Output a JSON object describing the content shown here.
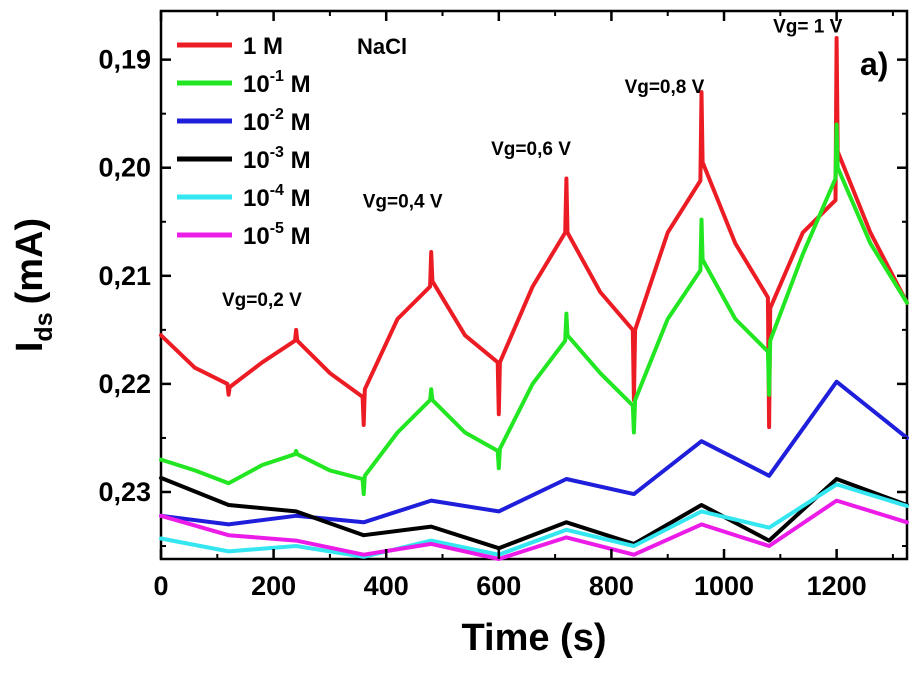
{
  "chart_data": {
    "type": "line",
    "xlabel": "Time (s)",
    "ylabel_main": "I",
    "ylabel_sub": "ds",
    "ylabel_unit": "(mA)",
    "xlim": [
      0,
      1325
    ],
    "ylim": [
      0.2362,
      0.1855
    ],
    "y_inverted": true,
    "x_ticks": [
      0,
      200,
      400,
      600,
      800,
      1000,
      1200
    ],
    "x_tick_labels": [
      "0",
      "200",
      "400",
      "600",
      "800",
      "1000",
      "1200"
    ],
    "y_ticks": [
      0.19,
      0.2,
      0.21,
      0.22,
      0.23
    ],
    "y_tick_labels": [
      "0,19",
      "0,20",
      "0,21",
      "0,22",
      "0,23"
    ],
    "grid": false,
    "legend_position": "top-left",
    "panel_label": "a)",
    "salt_label": "NaCl",
    "annotations": [
      {
        "text": "Vg=0,2 V",
        "x": 250,
        "y": 0.2128
      },
      {
        "text": "Vg=0,4 V",
        "x": 500,
        "y": 0.2037
      },
      {
        "text": "Vg=0,6 V",
        "x": 728,
        "y": 0.1988
      },
      {
        "text": "Vg=0,8 V",
        "x": 965,
        "y": 0.1931
      },
      {
        "text": "Vg= 1 V",
        "x": 1210,
        "y": 0.1875
      }
    ],
    "series": [
      {
        "name": "1 M",
        "legend_main": "1 M",
        "legend_exp": "",
        "legend_unit": "",
        "color": "#ec1c24",
        "x": [
          0,
          60,
          118,
          120,
          122,
          180,
          238,
          240,
          242,
          300,
          358,
          360,
          362,
          420,
          478,
          480,
          482,
          540,
          598,
          600,
          602,
          660,
          718,
          720,
          722,
          780,
          838,
          840,
          842,
          900,
          958,
          960,
          962,
          1020,
          1078,
          1080,
          1082,
          1140,
          1198,
          1200,
          1202,
          1260,
          1325
        ],
        "y": [
          0.2155,
          0.2185,
          0.22,
          0.221,
          0.2203,
          0.218,
          0.216,
          0.215,
          0.216,
          0.219,
          0.2212,
          0.2238,
          0.2205,
          0.214,
          0.211,
          0.2078,
          0.2105,
          0.2155,
          0.218,
          0.2228,
          0.218,
          0.211,
          0.206,
          0.201,
          0.206,
          0.2115,
          0.215,
          0.2215,
          0.215,
          0.206,
          0.2012,
          0.193,
          0.1995,
          0.207,
          0.212,
          0.224,
          0.213,
          0.206,
          0.203,
          0.188,
          0.1985,
          0.206,
          0.2125
        ]
      },
      {
        "name": "10^-1 M",
        "legend_main": "10",
        "legend_exp": "-1",
        "legend_unit": " M",
        "color": "#22e622",
        "x": [
          0,
          60,
          120,
          180,
          238,
          240,
          242,
          300,
          358,
          360,
          362,
          420,
          478,
          480,
          482,
          540,
          598,
          600,
          602,
          660,
          718,
          720,
          722,
          780,
          838,
          840,
          842,
          900,
          958,
          960,
          962,
          1020,
          1078,
          1080,
          1082,
          1140,
          1198,
          1200,
          1202,
          1260,
          1325
        ],
        "y": [
          0.227,
          0.228,
          0.2292,
          0.2275,
          0.2265,
          0.2262,
          0.2265,
          0.228,
          0.2288,
          0.2302,
          0.2285,
          0.2245,
          0.2215,
          0.2205,
          0.2215,
          0.2245,
          0.2262,
          0.2278,
          0.226,
          0.22,
          0.216,
          0.2135,
          0.2155,
          0.219,
          0.222,
          0.2245,
          0.2215,
          0.214,
          0.2095,
          0.2048,
          0.2085,
          0.214,
          0.217,
          0.221,
          0.216,
          0.208,
          0.201,
          0.196,
          0.2,
          0.207,
          0.2125
        ]
      },
      {
        "name": "10^-2 M",
        "legend_main": "10",
        "legend_exp": "-2",
        "legend_unit": " M",
        "color": "#1f1fdb",
        "x": [
          0,
          120,
          240,
          360,
          480,
          600,
          720,
          840,
          960,
          1080,
          1200,
          1325
        ],
        "y": [
          0.2322,
          0.233,
          0.2322,
          0.2328,
          0.2308,
          0.2318,
          0.2288,
          0.2302,
          0.2253,
          0.2285,
          0.2198,
          0.225
        ]
      },
      {
        "name": "10^-3 M",
        "legend_main": "10",
        "legend_exp": "-3",
        "legend_unit": " M",
        "color": "#000000",
        "x": [
          0,
          120,
          240,
          360,
          480,
          600,
          720,
          840,
          960,
          1080,
          1200,
          1325
        ],
        "y": [
          0.2287,
          0.2312,
          0.2318,
          0.234,
          0.2332,
          0.2352,
          0.2328,
          0.2348,
          0.2312,
          0.2345,
          0.2288,
          0.2312
        ]
      },
      {
        "name": "10^-4 M",
        "legend_main": "10",
        "legend_exp": "-4",
        "legend_unit": " M",
        "color": "#33e6f0",
        "x": [
          0,
          120,
          240,
          360,
          480,
          600,
          720,
          840,
          960,
          1080,
          1200,
          1325
        ],
        "y": [
          0.2343,
          0.2355,
          0.235,
          0.236,
          0.2345,
          0.2358,
          0.2335,
          0.235,
          0.2318,
          0.2333,
          0.2293,
          0.2313
        ]
      },
      {
        "name": "10^-5 M",
        "legend_main": "10",
        "legend_exp": "-5",
        "legend_unit": " M",
        "color": "#ec1ce8",
        "x": [
          0,
          120,
          240,
          360,
          480,
          600,
          720,
          840,
          960,
          1080,
          1200,
          1325
        ],
        "y": [
          0.2322,
          0.234,
          0.2345,
          0.2358,
          0.2348,
          0.2362,
          0.2342,
          0.2358,
          0.233,
          0.235,
          0.2308,
          0.2328
        ]
      }
    ]
  }
}
